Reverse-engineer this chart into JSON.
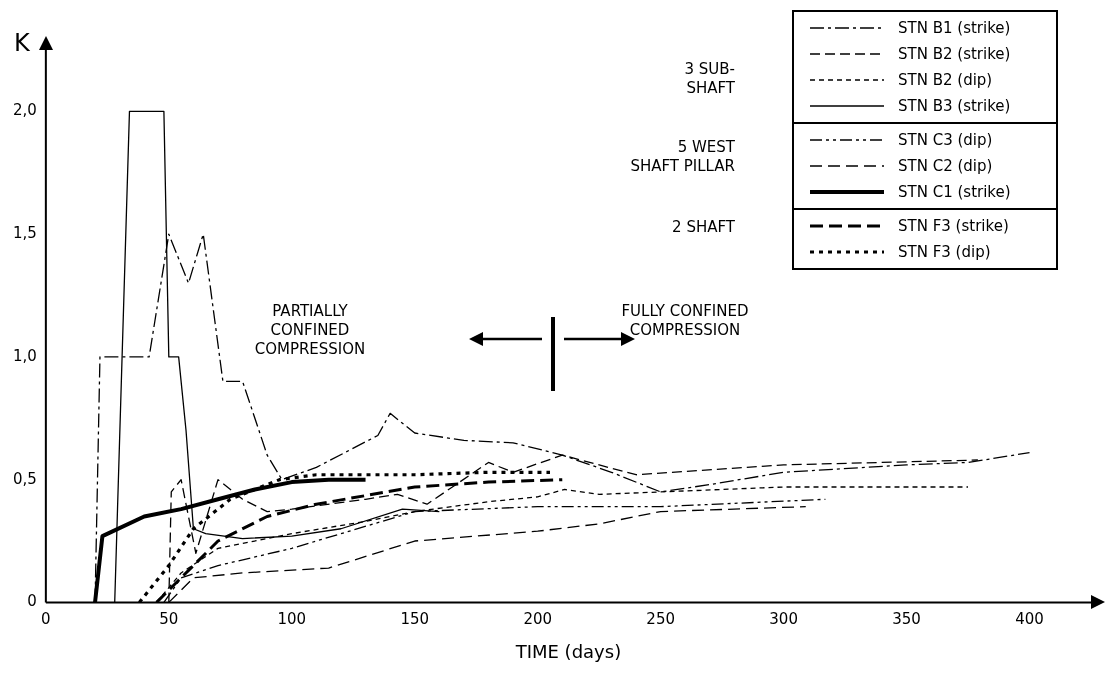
{
  "chart_data": {
    "type": "line",
    "xlabel": "TIME (days)",
    "ylabel": "K",
    "xlim": [
      0,
      425
    ],
    "ylim": [
      0,
      2.25
    ],
    "xticks": [
      0,
      50,
      100,
      150,
      200,
      250,
      300,
      350,
      400
    ],
    "yticks": [
      0,
      {
        "value": 0.5,
        "label": "0,5"
      },
      {
        "value": 1,
        "label": "1,0"
      },
      {
        "value": 1.5,
        "label": "1,5"
      },
      {
        "value": 2,
        "label": "2,0"
      }
    ],
    "grid": false,
    "legend": "top right",
    "marker": "none",
    "series": [
      {
        "name": "STN B1 (strike)",
        "color": "#000000",
        "line_style": "dashed",
        "x": [
          20,
          22,
          42,
          50,
          58,
          64,
          72,
          80,
          90,
          96,
          110,
          135,
          140,
          150,
          170,
          190,
          210,
          230,
          250,
          270,
          300,
          350,
          375,
          400
        ],
        "values": [
          0,
          1.0,
          1.0,
          1.5,
          1.3,
          1.5,
          0.9,
          0.9,
          0.6,
          0.5,
          0.55,
          0.68,
          0.77,
          0.69,
          0.66,
          0.65,
          0.6,
          0.53,
          0.45,
          0.48,
          0.53,
          0.56,
          0.57,
          0.61
        ]
      },
      {
        "name": "STN B2 (strike)",
        "color": "#000000",
        "line_style": "dashed",
        "x": [
          50,
          51,
          55,
          61,
          70,
          80,
          90,
          100,
          130,
          143,
          155,
          180,
          190,
          210,
          240,
          300,
          379
        ],
        "values": [
          0,
          0.45,
          0.5,
          0.2,
          0.5,
          0.42,
          0.37,
          0.38,
          0.42,
          0.44,
          0.4,
          0.57,
          0.53,
          0.6,
          0.52,
          0.56,
          0.58
        ]
      },
      {
        "name": "STN B2 (dip)",
        "color": "#000000",
        "line_style": "dotted",
        "x": [
          45,
          55,
          70,
          100,
          130,
          150,
          180,
          200,
          211,
          225,
          250,
          300,
          375
        ],
        "values": [
          0,
          0.12,
          0.22,
          0.28,
          0.33,
          0.37,
          0.41,
          0.43,
          0.46,
          0.44,
          0.45,
          0.47,
          0.47
        ]
      },
      {
        "name": "STN B3 (strike)",
        "color": "#000000",
        "line_style": "solid",
        "x": [
          28,
          34,
          48,
          50,
          54,
          57,
          60,
          65,
          80,
          100,
          120,
          145,
          160
        ],
        "values": [
          0,
          2.0,
          2.0,
          1.0,
          1.0,
          0.7,
          0.3,
          0.28,
          0.26,
          0.27,
          0.3,
          0.38,
          0.37
        ]
      },
      {
        "name": "STN C3 (dip)",
        "color": "#000000",
        "line_style": "dashed",
        "x": [
          48,
          55,
          70,
          100,
          120,
          150,
          200,
          250,
          317
        ],
        "values": [
          0,
          0.1,
          0.15,
          0.22,
          0.28,
          0.37,
          0.39,
          0.39,
          0.42
        ]
      },
      {
        "name": "STN C2 (dip)",
        "color": "#000000",
        "line_style": "dashed",
        "x": [
          50,
          60,
          80,
          115,
          150,
          200,
          225,
          250,
          309
        ],
        "values": [
          0,
          0.1,
          0.12,
          0.14,
          0.25,
          0.29,
          0.32,
          0.37,
          0.39
        ]
      },
      {
        "name": "STN C1 (strike)",
        "color": "#000000",
        "line_style": "solid",
        "x": [
          20,
          23,
          40,
          55,
          70,
          85,
          100,
          115,
          130
        ],
        "values": [
          0,
          0.27,
          0.35,
          0.38,
          0.42,
          0.46,
          0.49,
          0.5,
          0.5
        ]
      },
      {
        "name": "STN F3 (strike)",
        "color": "#000000",
        "line_style": "dashed",
        "x": [
          45,
          55,
          70,
          90,
          110,
          150,
          180,
          210
        ],
        "values": [
          0,
          0.1,
          0.25,
          0.35,
          0.4,
          0.47,
          0.49,
          0.5
        ]
      },
      {
        "name": "STN F3 (dip)",
        "color": "#000000",
        "line_style": "dotted",
        "x": [
          38,
          50,
          60,
          75,
          95,
          110,
          150,
          180,
          205
        ],
        "values": [
          0,
          0.15,
          0.3,
          0.42,
          0.5,
          0.52,
          0.52,
          0.53,
          0.53
        ]
      }
    ],
    "annotations": [
      "3 SUB-\nSHAFT",
      "5 WEST\nSHAFT PILLAR",
      "2 SHAFT",
      "PARTIALLY\nCONFINED\nCOMPRESSION",
      "FULLY CONFINED\nCOMPRESSION"
    ]
  }
}
